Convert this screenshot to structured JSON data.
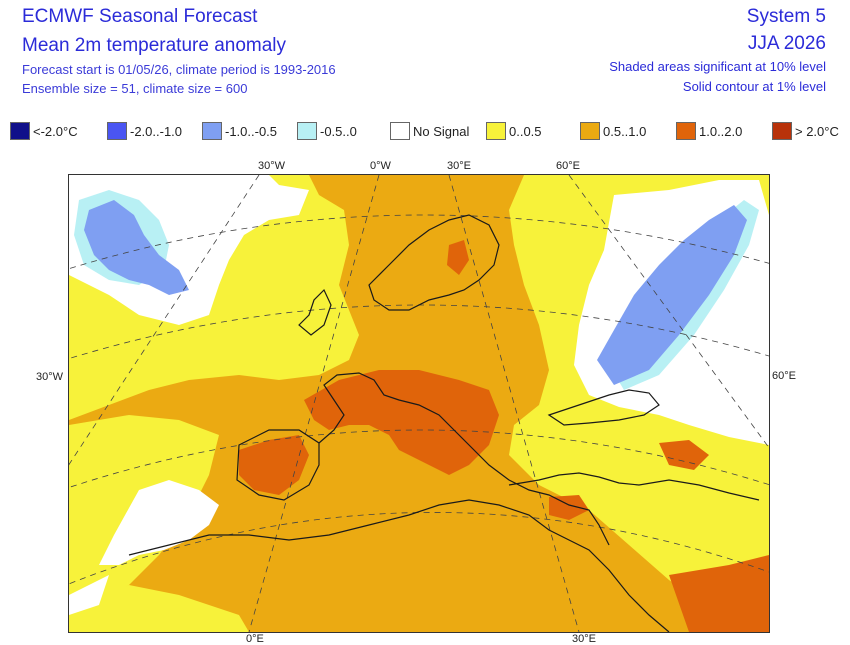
{
  "header": {
    "title": "ECMWF Seasonal Forecast",
    "subtitle": "Mean 2m temperature anomaly",
    "forecast_info": "Forecast start is 01/05/26, climate period is 1993-2016",
    "ensemble_info": "Ensemble size = 51, climate size = 600",
    "system": "System 5",
    "season": "JJA 2026",
    "note_shaded": "Shaded areas significant at 10% level",
    "note_contour": "Solid contour at 1% level"
  },
  "legend": [
    {
      "label": "<-2.0°C",
      "color": "#10108a"
    },
    {
      "label": "-2.0..-1.0",
      "color": "#4a55f2"
    },
    {
      "label": "-1.0..-0.5",
      "color": "#7f9ff2"
    },
    {
      "label": "-0.5..0",
      "color": "#b8f0f4"
    },
    {
      "label": "No Signal",
      "color": "#ffffff"
    },
    {
      "label": "0..0.5",
      "color": "#f7f23a"
    },
    {
      "label": "0.5..1.0",
      "color": "#ebaa12"
    },
    {
      "label": "1.0..2.0",
      "color": "#e0640a"
    },
    {
      "label": "> 2.0°C",
      "color": "#b8320a"
    }
  ],
  "map": {
    "lon_ticks_top": [
      "30°W",
      "0°W",
      "30°E",
      "60°E"
    ],
    "lon_ticks_bottom": [
      "0°E",
      "30°E"
    ],
    "lat_tick_left": "30°W",
    "lat_tick_right": "60°E"
  }
}
